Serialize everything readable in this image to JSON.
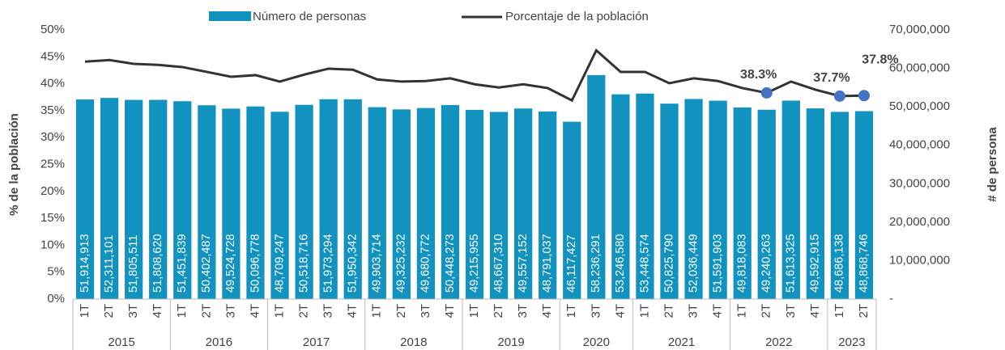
{
  "chart_data": {
    "type": "bar_line",
    "y_label": "% de la población",
    "y2_label": "# de persona",
    "groups": [
      {
        "label": "2015",
        "quarters": [
          "1T",
          "2T",
          "3T",
          "4T"
        ]
      },
      {
        "label": "2016",
        "quarters": [
          "1T",
          "2T",
          "3T",
          "4T"
        ]
      },
      {
        "label": "2017",
        "quarters": [
          "1T",
          "2T",
          "3T",
          "4T"
        ]
      },
      {
        "label": "2018",
        "quarters": [
          "1T",
          "2T",
          "3T",
          "4T"
        ]
      },
      {
        "label": "2019",
        "quarters": [
          "1T",
          "2T",
          "3T",
          "4T"
        ]
      },
      {
        "label": "2020",
        "quarters": [
          "1T",
          "3T",
          "4T"
        ]
      },
      {
        "label": "2021",
        "quarters": [
          "1T",
          "2T",
          "3T",
          "4T"
        ]
      },
      {
        "label": "2022",
        "quarters": [
          "1T",
          "2T",
          "3T",
          "4T"
        ]
      },
      {
        "label": "2023",
        "quarters": [
          "1T",
          "2T"
        ]
      }
    ],
    "series": [
      {
        "name": "Número de personas",
        "type": "bar",
        "axis": "y2",
        "color": "#1192bf",
        "values": [
          51914913,
          52311101,
          51805511,
          51808620,
          51451839,
          50402487,
          49524728,
          50096778,
          48709247,
          50518716,
          51973294,
          51950342,
          49903714,
          49325232,
          49680772,
          50448273,
          49215955,
          48667310,
          49557152,
          48791037,
          46117427,
          58236291,
          53246580,
          53448574,
          50825790,
          52036449,
          51591903,
          49818083,
          49240263,
          51613325,
          49592915,
          48686138,
          48868746
        ],
        "value_labels": [
          "51,914,913",
          "52,311,101",
          "51,805,511",
          "51,808,620",
          "51,451,839",
          "50,402,487",
          "49,524,728",
          "50,096,778",
          "48,709,247",
          "50,518,716",
          "51,973,294",
          "51,950,342",
          "49,903,714",
          "49,325,232",
          "49,680,772",
          "50,448,273",
          "49,215,955",
          "48,667,310",
          "49,557,152",
          "48,791,037",
          "46,117,427",
          "58,236,291",
          "53,246,580",
          "53,448,574",
          "50,825,790",
          "52,036,449",
          "51,591,903",
          "49,818,083",
          "49,240,263",
          "51,613,325",
          "49,592,915",
          "48,686,138",
          "48,868,746"
        ]
      },
      {
        "name": "Porcentaje de la población",
        "type": "line",
        "axis": "y",
        "color": "#333333",
        "marker_color": "#4472c4",
        "values": [
          44.1,
          44.4,
          43.7,
          43.5,
          43.1,
          42.2,
          41.3,
          41.6,
          40.4,
          41.7,
          42.8,
          42.6,
          40.8,
          40.4,
          40.5,
          41.0,
          39.9,
          39.3,
          39.9,
          39.2,
          36.9,
          46.2,
          42.2,
          42.2,
          40.1,
          41.0,
          40.5,
          39.2,
          38.3,
          40.4,
          38.9,
          37.7,
          37.8
        ],
        "value_labels": [
          null,
          null,
          null,
          null,
          null,
          null,
          null,
          null,
          null,
          null,
          null,
          null,
          null,
          null,
          null,
          null,
          null,
          null,
          null,
          null,
          null,
          null,
          null,
          null,
          null,
          null,
          null,
          null,
          "38.3%",
          null,
          null,
          "37.7%",
          "37.8%"
        ]
      }
    ],
    "ylim": [
      0,
      50
    ],
    "yticks": [
      {
        "value": 0,
        "label": "0%"
      },
      {
        "value": 5,
        "label": "5%"
      },
      {
        "value": 10,
        "label": "10%"
      },
      {
        "value": 15,
        "label": "15%"
      },
      {
        "value": 20,
        "label": "20%"
      },
      {
        "value": 25,
        "label": "25%"
      },
      {
        "value": 30,
        "label": "30%"
      },
      {
        "value": 35,
        "label": "35%"
      },
      {
        "value": 40,
        "label": "40%"
      },
      {
        "value": 45,
        "label": "45%"
      },
      {
        "value": 50,
        "label": "50%"
      }
    ],
    "y2lim": [
      0,
      70000000
    ],
    "y2ticks": [
      {
        "value": 0,
        "label": "-"
      },
      {
        "value": 10000000,
        "label": "10,000,000"
      },
      {
        "value": 20000000,
        "label": "20,000,000"
      },
      {
        "value": 30000000,
        "label": "30,000,000"
      },
      {
        "value": 40000000,
        "label": "40,000,000"
      },
      {
        "value": 50000000,
        "label": "50,000,000"
      },
      {
        "value": 60000000,
        "label": "60,000,000"
      },
      {
        "value": 70000000,
        "label": "70,000,000"
      }
    ],
    "legend": "top"
  }
}
